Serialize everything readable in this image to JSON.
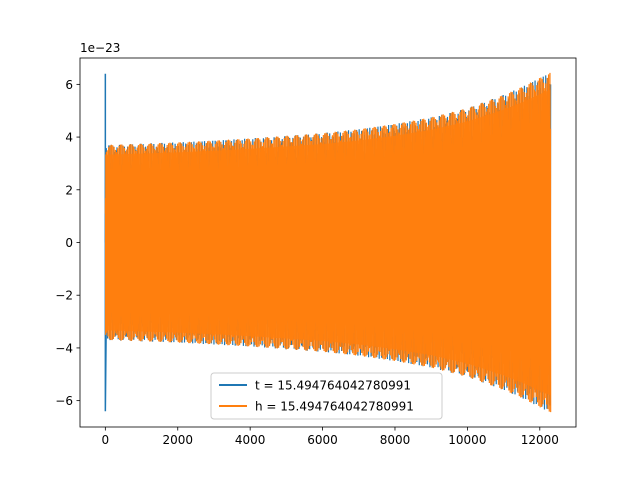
{
  "chart_data": {
    "type": "line",
    "title": "",
    "xlabel": "",
    "ylabel": "",
    "y_offset_text": "1e−23",
    "xlim": [
      -700,
      13000
    ],
    "ylim": [
      -7.0,
      7.0
    ],
    "y_scale_factor": 1e-23,
    "x_ticks": [
      0,
      2000,
      4000,
      6000,
      8000,
      10000,
      12000
    ],
    "x_tick_labels": [
      "0",
      "2000",
      "4000",
      "6000",
      "8000",
      "10000",
      "12000"
    ],
    "y_ticks": [
      -6,
      -4,
      -2,
      0,
      2,
      4,
      6
    ],
    "y_tick_labels": [
      "−6",
      "−4",
      "−2",
      "0",
      "2",
      "4",
      "6"
    ],
    "grid": false,
    "legend_position": "bottom-center",
    "series": [
      {
        "name": "t = 15.494764042780991",
        "color": "#1f77b4",
        "description_points": [
          {
            "x": 0,
            "y": 6.4
          },
          {
            "x": 0,
            "y": -6.4
          },
          {
            "x": 50,
            "y": 0.4
          }
        ]
      },
      {
        "name": "h = 15.494764042780991",
        "color": "#ff7f0e",
        "envelope": {
          "x": [
            0,
            1000,
            2000,
            3000,
            4000,
            5000,
            6000,
            7000,
            8000,
            9000,
            10000,
            10500,
            11000,
            11500,
            12000,
            12300
          ],
          "amplitude": [
            3.7,
            3.75,
            3.8,
            3.87,
            3.95,
            4.05,
            4.15,
            4.3,
            4.5,
            4.75,
            5.1,
            5.35,
            5.6,
            5.9,
            6.25,
            6.45
          ]
        },
        "x_end": 12300
      }
    ]
  }
}
